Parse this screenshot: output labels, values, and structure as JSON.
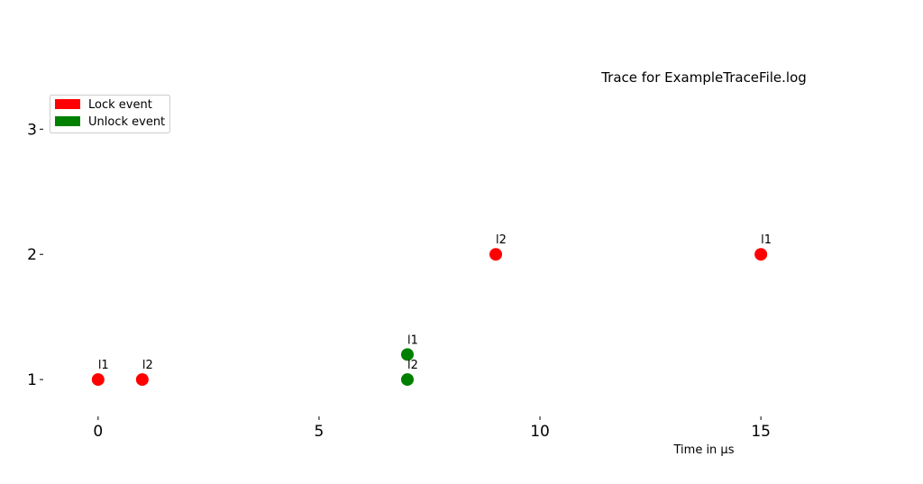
{
  "chart_data": {
    "type": "scatter",
    "title": "Trace for ExampleTraceFile.log",
    "xlabel": "Time in µs",
    "ylabel": "",
    "xlim": [
      -1.2,
      17.2
    ],
    "ylim": [
      0.72,
      3.6
    ],
    "x_ticks": [
      0,
      5,
      10,
      15
    ],
    "y_ticks": [
      1,
      2,
      3
    ],
    "grid": false,
    "legend_position": "top-left",
    "legend": [
      {
        "label": "Lock event",
        "color": "#ff0000"
      },
      {
        "label": "Unlock event",
        "color": "#008000"
      }
    ],
    "series": [
      {
        "name": "Lock event",
        "color": "#ff0000",
        "points": [
          {
            "x": 0,
            "y": 1,
            "label": "l1"
          },
          {
            "x": 1,
            "y": 1,
            "label": "l2"
          },
          {
            "x": 9,
            "y": 2,
            "label": "l2"
          },
          {
            "x": 15,
            "y": 2,
            "label": "l1"
          }
        ]
      },
      {
        "name": "Unlock event",
        "color": "#008000",
        "points": [
          {
            "x": 7,
            "y": 1.2,
            "label": "l1"
          },
          {
            "x": 7,
            "y": 1,
            "label": "l2"
          }
        ]
      }
    ]
  }
}
